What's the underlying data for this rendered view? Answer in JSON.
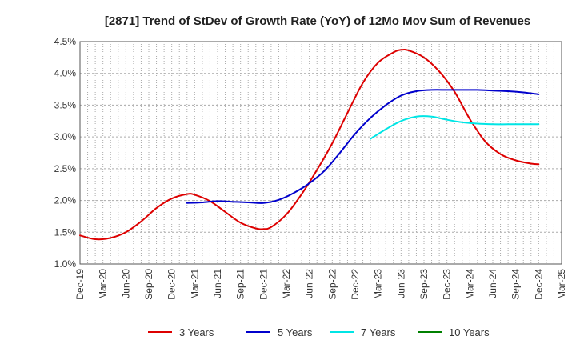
{
  "chart_data": {
    "type": "line",
    "title": "[2871]  Trend of StDev of Growth Rate (YoY) of 12Mo Mov Sum of Revenues",
    "xlabel": "",
    "ylabel": "",
    "ylim": [
      0.01,
      0.045
    ],
    "y_ticks": [
      0.01,
      0.015,
      0.02,
      0.025,
      0.03,
      0.035,
      0.04,
      0.045
    ],
    "y_tick_labels": [
      "1.0%",
      "1.5%",
      "2.0%",
      "2.5%",
      "3.0%",
      "3.5%",
      "4.0%",
      "4.5%"
    ],
    "x_tick_labels": [
      "Dec-19",
      "Mar-20",
      "Jun-20",
      "Sep-20",
      "Dec-20",
      "Mar-21",
      "Jun-21",
      "Sep-21",
      "Dec-21",
      "Mar-22",
      "Jun-22",
      "Sep-22",
      "Dec-22",
      "Mar-23",
      "Jun-23",
      "Sep-23",
      "Dec-23",
      "Mar-24",
      "Jun-24",
      "Sep-24",
      "Dec-24",
      "Mar-25"
    ],
    "x_range_months": [
      0,
      63
    ],
    "grid": true,
    "legend_position": "bottom",
    "series": [
      {
        "name": "3 Years",
        "color": "#dd0000",
        "points": [
          [
            0,
            0.0145
          ],
          [
            2,
            0.0139
          ],
          [
            4,
            0.0141
          ],
          [
            6,
            0.015
          ],
          [
            8,
            0.0167
          ],
          [
            10,
            0.0188
          ],
          [
            12,
            0.0203
          ],
          [
            14,
            0.021
          ],
          [
            15,
            0.0209
          ],
          [
            17,
            0.0199
          ],
          [
            19,
            0.0182
          ],
          [
            21,
            0.0165
          ],
          [
            23,
            0.0156
          ],
          [
            24,
            0.0155
          ],
          [
            25,
            0.0158
          ],
          [
            27,
            0.0178
          ],
          [
            29,
            0.021
          ],
          [
            31,
            0.0248
          ],
          [
            33,
            0.029
          ],
          [
            35,
            0.0338
          ],
          [
            37,
            0.0385
          ],
          [
            39,
            0.0417
          ],
          [
            41,
            0.0433
          ],
          [
            42,
            0.0437
          ],
          [
            43,
            0.0436
          ],
          [
            45,
            0.0425
          ],
          [
            47,
            0.0403
          ],
          [
            49,
            0.0371
          ],
          [
            51,
            0.0328
          ],
          [
            53,
            0.0293
          ],
          [
            55,
            0.0273
          ],
          [
            57,
            0.0263
          ],
          [
            59,
            0.0258
          ],
          [
            60,
            0.0257
          ]
        ]
      },
      {
        "name": "5 Years",
        "color": "#0000cc",
        "points": [
          [
            14,
            0.0196
          ],
          [
            16,
            0.0197
          ],
          [
            18,
            0.0199
          ],
          [
            20,
            0.0198
          ],
          [
            22,
            0.0197
          ],
          [
            24,
            0.0196
          ],
          [
            26,
            0.0201
          ],
          [
            28,
            0.0212
          ],
          [
            30,
            0.0227
          ],
          [
            32,
            0.0247
          ],
          [
            34,
            0.0275
          ],
          [
            36,
            0.0305
          ],
          [
            38,
            0.033
          ],
          [
            40,
            0.035
          ],
          [
            42,
            0.0365
          ],
          [
            44,
            0.0372
          ],
          [
            46,
            0.0374
          ],
          [
            48,
            0.0374
          ],
          [
            50,
            0.0374
          ],
          [
            52,
            0.0374
          ],
          [
            54,
            0.0373
          ],
          [
            56,
            0.0372
          ],
          [
            58,
            0.037
          ],
          [
            60,
            0.0367
          ]
        ]
      },
      {
        "name": "7 Years",
        "color": "#00e5e5",
        "points": [
          [
            38,
            0.0297
          ],
          [
            40,
            0.0312
          ],
          [
            42,
            0.0325
          ],
          [
            44,
            0.0332
          ],
          [
            46,
            0.0332
          ],
          [
            48,
            0.0327
          ],
          [
            50,
            0.0323
          ],
          [
            52,
            0.0321
          ],
          [
            54,
            0.032
          ],
          [
            56,
            0.032
          ],
          [
            58,
            0.032
          ],
          [
            60,
            0.032
          ]
        ]
      },
      {
        "name": "10 Years",
        "color": "#008000",
        "points": []
      }
    ]
  }
}
